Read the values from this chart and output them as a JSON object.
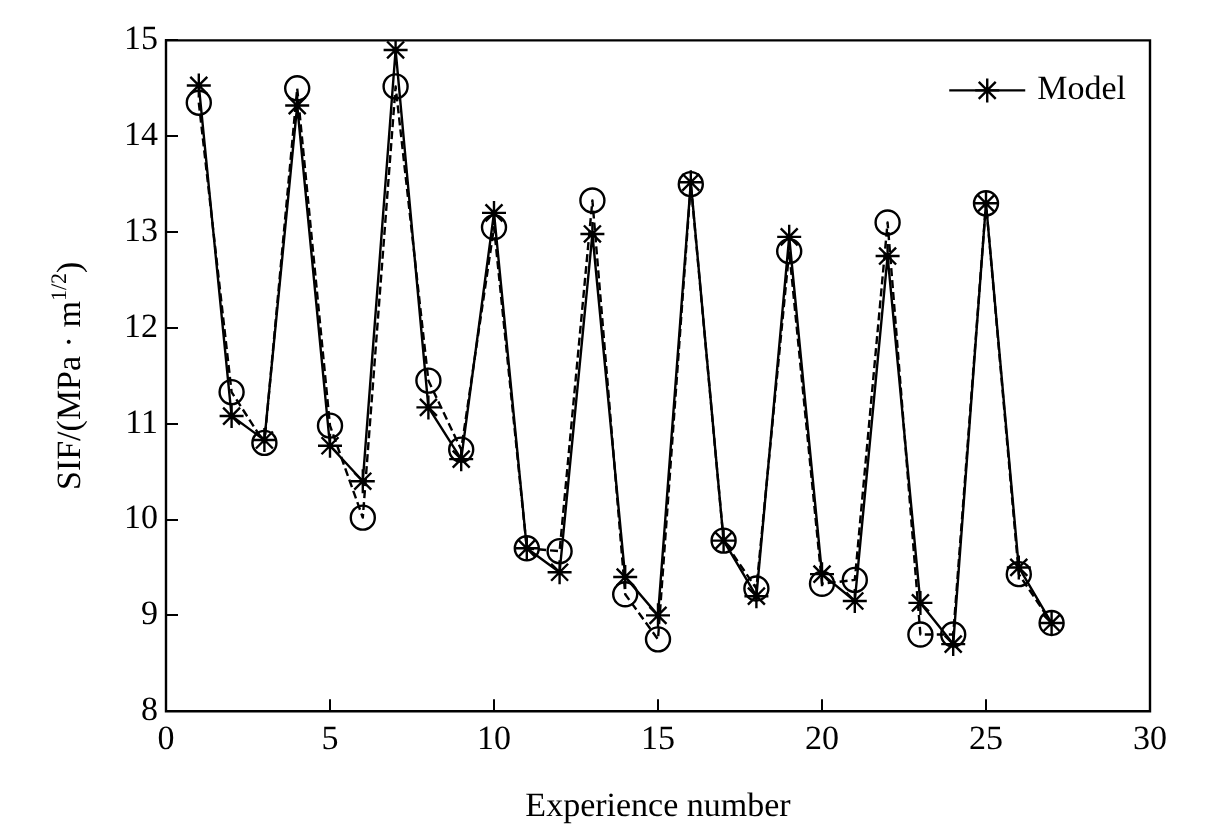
{
  "chart_data": {
    "type": "line",
    "xlabel": "Experience number",
    "ylabel": "SIF/(MPa · m$^{1/2}$)",
    "x": [
      1,
      2,
      3,
      4,
      5,
      6,
      7,
      8,
      9,
      10,
      11,
      12,
      13,
      14,
      15,
      16,
      17,
      18,
      19,
      20,
      21,
      22,
      23,
      24,
      25,
      26,
      27
    ],
    "xlim": [
      0,
      30
    ],
    "xticks": [
      0,
      5,
      10,
      15,
      20,
      25,
      30
    ],
    "ylim": [
      8,
      15
    ],
    "yticks": [
      8,
      9,
      10,
      11,
      12,
      13,
      14,
      15
    ],
    "grid": false,
    "legend": "top right",
    "series": [
      {
        "color": "#000000",
        "marker": "circle",
        "line_style": "dashed",
        "values": [
          14.35,
          11.33,
          10.8,
          14.5,
          10.98,
          10.02,
          14.52,
          11.45,
          10.73,
          13.05,
          9.7,
          9.67,
          13.33,
          9.22,
          8.75,
          13.5,
          9.78,
          9.28,
          12.8,
          9.33,
          9.37,
          13.1,
          8.8,
          8.8,
          13.3,
          9.43,
          8.92
        ]
      },
      {
        "name": "Model",
        "color": "#000000",
        "marker": "cross",
        "line_style": "solid",
        "values": [
          14.53,
          11.08,
          10.83,
          14.32,
          10.77,
          10.4,
          14.9,
          11.17,
          10.63,
          13.2,
          9.7,
          9.45,
          12.98,
          9.4,
          9.0,
          13.52,
          9.78,
          9.2,
          12.95,
          9.43,
          9.15,
          12.75,
          9.13,
          8.7,
          13.3,
          9.5,
          8.92
        ]
      }
    ]
  }
}
